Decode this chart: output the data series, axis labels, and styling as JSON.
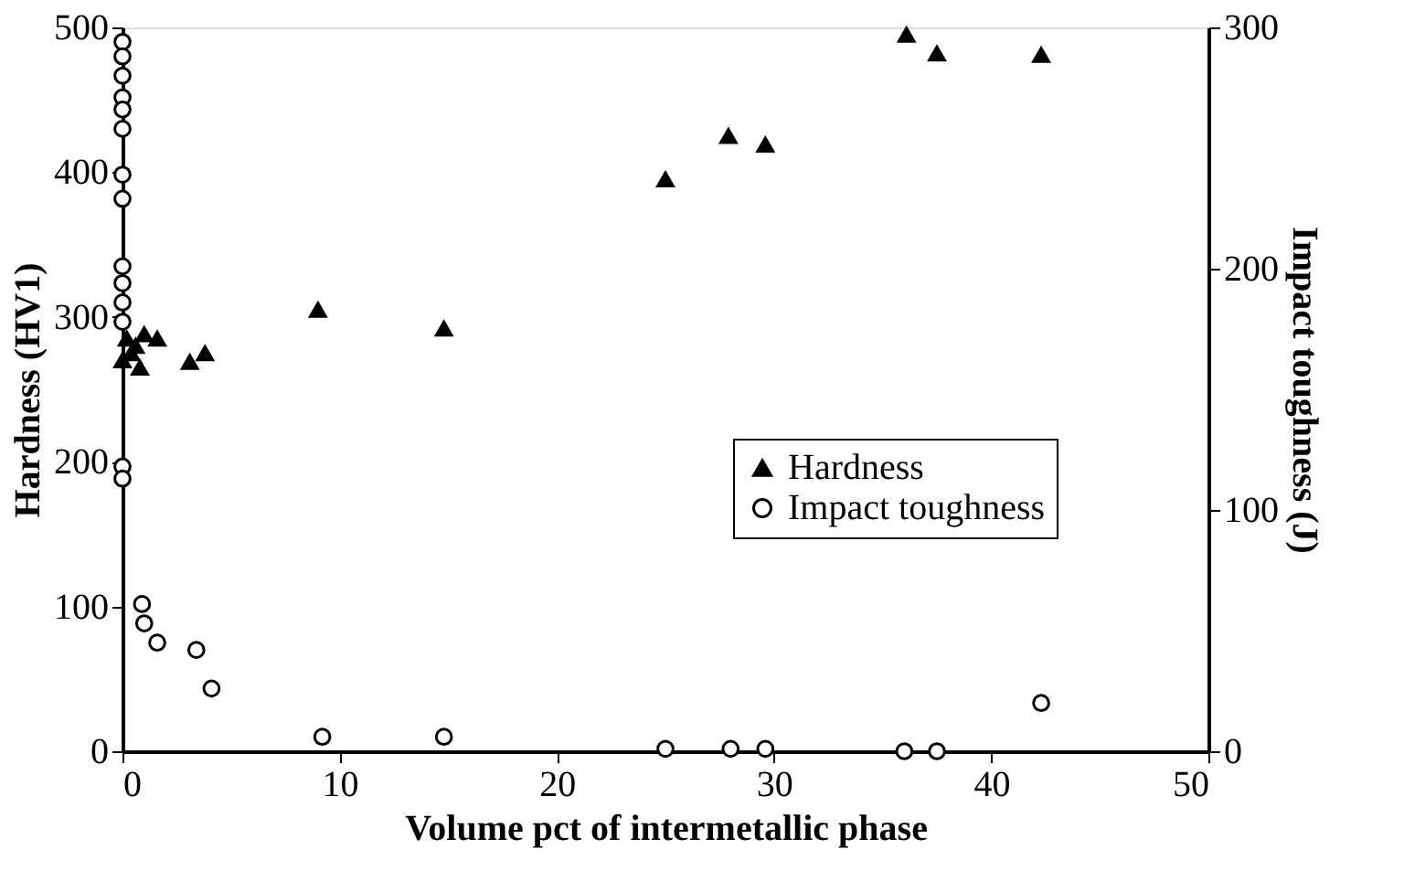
{
  "chart_data": {
    "type": "scatter",
    "xlabel": "Volume pct of intermetallic phase",
    "ylabel": "Hardness (HV1)",
    "y2label": "Impact toughness (J)",
    "xlim": [
      0,
      50
    ],
    "xticks": [
      0,
      10,
      20,
      30,
      40,
      50
    ],
    "ylim": [
      0,
      500
    ],
    "yticks": [
      0,
      100,
      200,
      300,
      400,
      500
    ],
    "y2lim": [
      0,
      300
    ],
    "y2ticks": [
      0,
      100,
      200,
      300
    ],
    "legend": "right",
    "grid": false,
    "series": [
      {
        "name": "Hardness",
        "color": "#000000",
        "marker": "triangle",
        "x": [
          0,
          0.2,
          0.4,
          0.6,
          0.8,
          1.0,
          1.6,
          3.1,
          3.8,
          9.0,
          14.8,
          25.0,
          27.9,
          29.6,
          36.1,
          37.5,
          42.3
        ],
        "values": [
          270,
          285,
          275,
          280,
          265,
          288,
          285,
          269,
          275,
          305,
          292,
          395,
          425,
          419,
          495,
          482,
          481
        ]
      },
      {
        "name": "Impact toughness",
        "color": "#000000",
        "marker": "circle",
        "axis": "y2",
        "x": [
          0,
          0,
          0,
          0,
          0,
          0,
          0,
          0,
          0,
          0,
          0,
          0,
          0,
          0,
          0.9,
          1.0,
          1.6,
          3.4,
          4.1,
          9.2,
          14.8,
          25.0,
          28.0,
          29.6,
          36.0,
          37.5,
          42.3
        ],
        "values": [
          294,
          288,
          280,
          271,
          266,
          258,
          239,
          229,
          201,
          194,
          186,
          178,
          118,
          113,
          61,
          53,
          45,
          42,
          26,
          6,
          6,
          1,
          1,
          1,
          0,
          0,
          20
        ]
      }
    ]
  }
}
